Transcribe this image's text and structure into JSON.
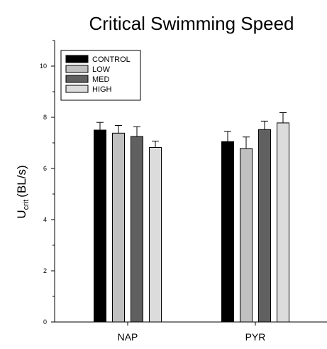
{
  "chart_data": {
    "type": "bar",
    "title": "Critical Swimming Speed",
    "xlabel": "",
    "ylabel": "U",
    "ylabel_subscript": "crit",
    "ylabel_unit": "(BL/s)",
    "ylim": [
      0,
      11
    ],
    "yticks": [
      0,
      2,
      4,
      6,
      8,
      10
    ],
    "grid": false,
    "legend_position": "top-left",
    "categories": [
      "NAP",
      "PYR"
    ],
    "series": [
      {
        "name": "CONTROL",
        "color": "#000000",
        "values": [
          7.5,
          7.05
        ],
        "errors": [
          0.3,
          0.4
        ]
      },
      {
        "name": "LOW",
        "color": "#c0c0c0",
        "values": [
          7.38,
          6.78
        ],
        "errors": [
          0.3,
          0.45
        ]
      },
      {
        "name": "MED",
        "color": "#606060",
        "values": [
          7.25,
          7.52
        ],
        "errors": [
          0.38,
          0.33
        ]
      },
      {
        "name": "HIGH",
        "color": "#dcdcdc",
        "values": [
          6.82,
          7.78
        ],
        "errors": [
          0.25,
          0.4
        ]
      }
    ]
  }
}
